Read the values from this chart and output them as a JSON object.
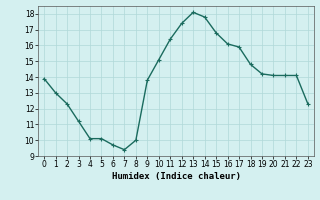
{
  "x": [
    0,
    1,
    2,
    3,
    4,
    5,
    6,
    7,
    8,
    9,
    10,
    11,
    12,
    13,
    14,
    15,
    16,
    17,
    18,
    19,
    20,
    21,
    22,
    23
  ],
  "y": [
    13.9,
    13.0,
    12.3,
    11.2,
    10.1,
    10.1,
    9.7,
    9.4,
    10.0,
    13.8,
    15.1,
    16.4,
    17.4,
    18.1,
    17.8,
    16.8,
    16.1,
    15.9,
    14.8,
    14.2,
    14.1,
    14.1,
    14.1,
    12.3
  ],
  "line_color": "#1a6b5e",
  "marker": "+",
  "marker_size": 3,
  "bg_color": "#d4f0f0",
  "grid_color": "#b0d8d8",
  "xlabel": "Humidex (Indice chaleur)",
  "ylim": [
    9,
    18.5
  ],
  "xlim": [
    -0.5,
    23.5
  ],
  "yticks": [
    9,
    10,
    11,
    12,
    13,
    14,
    15,
    16,
    17,
    18
  ],
  "xticks": [
    0,
    1,
    2,
    3,
    4,
    5,
    6,
    7,
    8,
    9,
    10,
    11,
    12,
    13,
    14,
    15,
    16,
    17,
    18,
    19,
    20,
    21,
    22,
    23
  ],
  "xtick_labels": [
    "0",
    "1",
    "2",
    "3",
    "4",
    "5",
    "6",
    "7",
    "8",
    "9",
    "10",
    "11",
    "12",
    "13",
    "14",
    "15",
    "16",
    "17",
    "18",
    "19",
    "20",
    "21",
    "22",
    "23"
  ],
  "label_fontsize": 6.5,
  "tick_fontsize": 5.5,
  "line_width": 1.0,
  "marker_edge_width": 0.8
}
